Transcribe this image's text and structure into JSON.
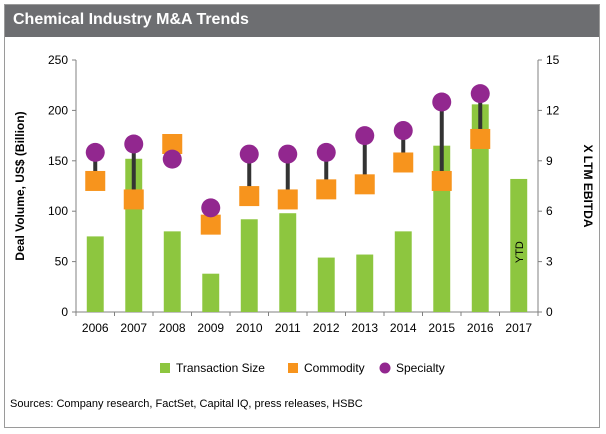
{
  "title": "Chemical Industry M&A Trends",
  "source": "Sources: Company research, FactSet, Capital IQ, press releases, HSBC",
  "colors": {
    "bar": "#8dc63f",
    "commodity": "#f7941d",
    "specialty": "#92278f",
    "connector": "#333333",
    "header": "#6d6e71"
  },
  "chart_data": {
    "type": "bar",
    "categories": [
      "2006",
      "2007",
      "2008",
      "2009",
      "2010",
      "2011",
      "2012",
      "2013",
      "2014",
      "2015",
      "2016",
      "2017"
    ],
    "ylabel": "Deal Volume, US$ (Billion)",
    "y2label": "X LTM EBITDA",
    "ylim": [
      0,
      250
    ],
    "y2lim": [
      0,
      15
    ],
    "yticks": [
      0,
      50,
      100,
      150,
      200,
      250
    ],
    "y2ticks": [
      0,
      3,
      6,
      9,
      12,
      15
    ],
    "grid": false,
    "legend_position": "bottom",
    "annotation": {
      "text": "YTD",
      "category": "2017"
    },
    "series": [
      {
        "name": "Transaction Size",
        "kind": "bar",
        "axis": "left",
        "values": [
          75,
          152,
          80,
          38,
          92,
          98,
          54,
          57,
          80,
          165,
          206,
          132
        ]
      },
      {
        "name": "Commodity",
        "kind": "square",
        "axis": "right",
        "values": [
          7.8,
          6.7,
          10.0,
          5.2,
          6.9,
          6.7,
          7.3,
          7.6,
          8.9,
          7.8,
          10.3,
          null
        ]
      },
      {
        "name": "Specialty",
        "kind": "circle",
        "axis": "right",
        "values": [
          9.5,
          10.0,
          9.1,
          6.2,
          9.4,
          9.4,
          9.5,
          10.5,
          10.8,
          12.5,
          13.0,
          null
        ]
      }
    ]
  }
}
